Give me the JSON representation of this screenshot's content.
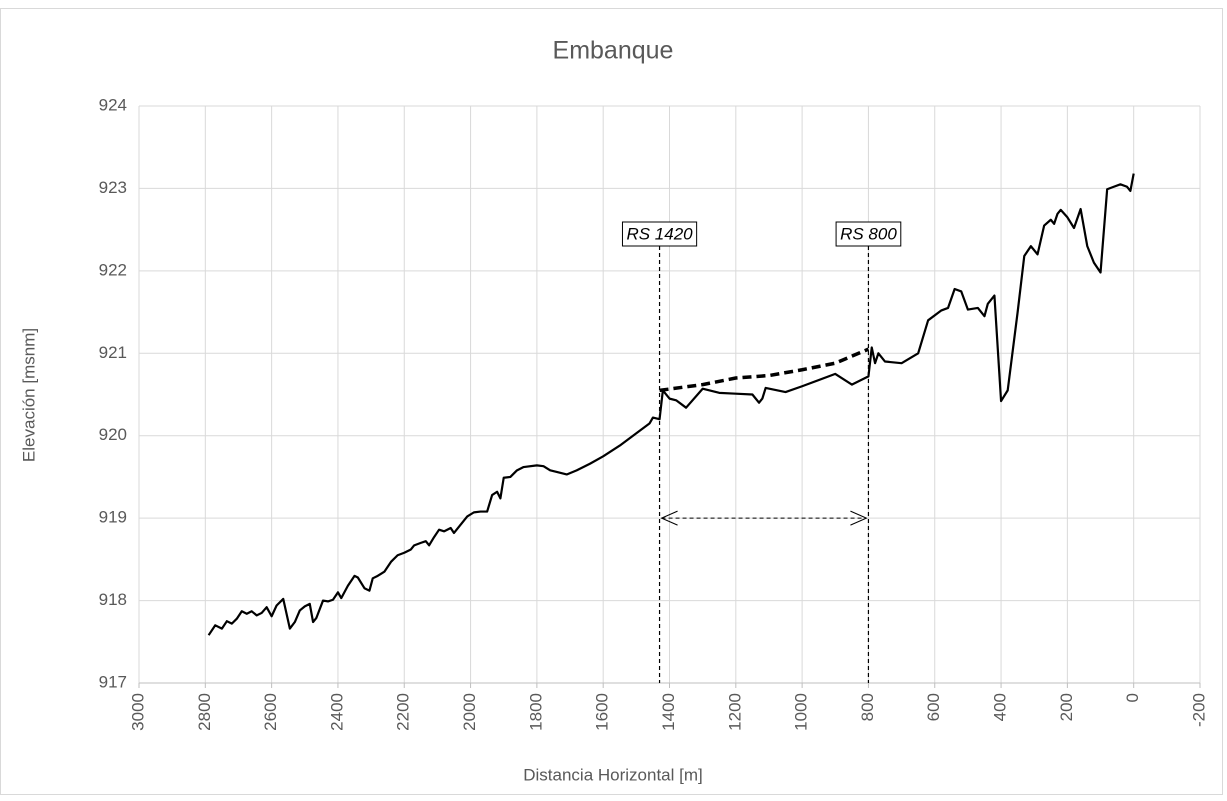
{
  "chart_data": {
    "type": "line",
    "title": "Embanque",
    "x_label": "Distancia Horizontal [m]",
    "y_label": "Elevación [msnm]",
    "xlim": [
      3000,
      -200
    ],
    "ylim": [
      917,
      924
    ],
    "xticks": [
      3000,
      2800,
      2600,
      2400,
      2200,
      2000,
      1800,
      1600,
      1400,
      1200,
      1000,
      800,
      600,
      400,
      200,
      0,
      -200
    ],
    "yticks": [
      917,
      918,
      919,
      920,
      921,
      922,
      923,
      924
    ],
    "grid": true,
    "series": [
      {
        "color": "#000000",
        "dash": false,
        "x": [
          2790,
          2770,
          2750,
          2735,
          2720,
          2705,
          2690,
          2675,
          2660,
          2645,
          2630,
          2615,
          2600,
          2585,
          2565,
          2545,
          2530,
          2515,
          2500,
          2485,
          2475,
          2465,
          2445,
          2430,
          2415,
          2400,
          2390,
          2370,
          2350,
          2340,
          2320,
          2305,
          2295,
          2280,
          2260,
          2240,
          2220,
          2200,
          2180,
          2170,
          2150,
          2135,
          2125,
          2110,
          2095,
          2080,
          2060,
          2050,
          2030,
          2010,
          1990,
          1970,
          1950,
          1935,
          1920,
          1910,
          1900,
          1880,
          1860,
          1840,
          1800,
          1780,
          1760,
          1740,
          1710,
          1680,
          1640,
          1600,
          1550,
          1500,
          1460,
          1450,
          1430,
          1420,
          1400,
          1380,
          1350,
          1300,
          1250,
          1200,
          1150,
          1130,
          1120,
          1110,
          1050,
          1000,
          900,
          850,
          800,
          790,
          780,
          770,
          750,
          700,
          650,
          620,
          580,
          560,
          540,
          520,
          500,
          470,
          450,
          440,
          420,
          400,
          380,
          350,
          330,
          310,
          290,
          270,
          250,
          240,
          230,
          220,
          200,
          180,
          160,
          140,
          120,
          100,
          80,
          60,
          40,
          20,
          10,
          0
        ],
        "values": [
          917.58,
          917.7,
          917.66,
          917.75,
          917.72,
          917.78,
          917.87,
          917.84,
          917.87,
          917.82,
          917.85,
          917.92,
          917.81,
          917.94,
          918.02,
          917.66,
          917.74,
          917.88,
          917.93,
          917.96,
          917.74,
          917.79,
          918.0,
          917.99,
          918.01,
          918.1,
          918.03,
          918.18,
          918.3,
          918.28,
          918.15,
          918.12,
          918.27,
          918.3,
          918.35,
          918.47,
          918.55,
          918.58,
          918.62,
          918.67,
          918.7,
          918.72,
          918.67,
          918.77,
          918.86,
          918.84,
          918.88,
          918.82,
          918.92,
          919.02,
          919.07,
          919.08,
          919.08,
          919.28,
          919.32,
          919.24,
          919.49,
          919.5,
          919.58,
          919.62,
          919.64,
          919.63,
          919.58,
          919.56,
          919.53,
          919.58,
          919.66,
          919.75,
          919.88,
          920.03,
          920.15,
          920.22,
          920.2,
          920.55,
          920.45,
          920.43,
          920.34,
          920.57,
          920.52,
          920.51,
          920.5,
          920.4,
          920.45,
          920.58,
          920.53,
          920.6,
          920.75,
          920.62,
          920.72,
          921.07,
          920.88,
          921.0,
          920.9,
          920.88,
          921.0,
          921.4,
          921.52,
          921.55,
          921.78,
          921.75,
          921.53,
          921.55,
          921.45,
          921.6,
          921.7,
          920.42,
          920.55,
          921.5,
          922.18,
          922.3,
          922.2,
          922.55,
          922.62,
          922.57,
          922.69,
          922.74,
          922.65,
          922.52,
          922.75,
          922.3,
          922.1,
          921.98,
          922.99,
          923.02,
          923.05,
          923.02,
          922.97,
          923.18
        ]
      },
      {
        "color": "#000000",
        "dash": true,
        "x": [
          1430,
          1300,
          1200,
          1100,
          1000,
          900,
          800
        ],
        "values": [
          920.55,
          920.62,
          920.7,
          920.73,
          920.8,
          920.88,
          921.05
        ]
      }
    ],
    "annotations": [
      {
        "label": "RS 1420",
        "x": 1430
      },
      {
        "label": "RS 800",
        "x": 800
      }
    ],
    "span": {
      "x": [
        1430,
        800
      ],
      "y": 919
    }
  }
}
